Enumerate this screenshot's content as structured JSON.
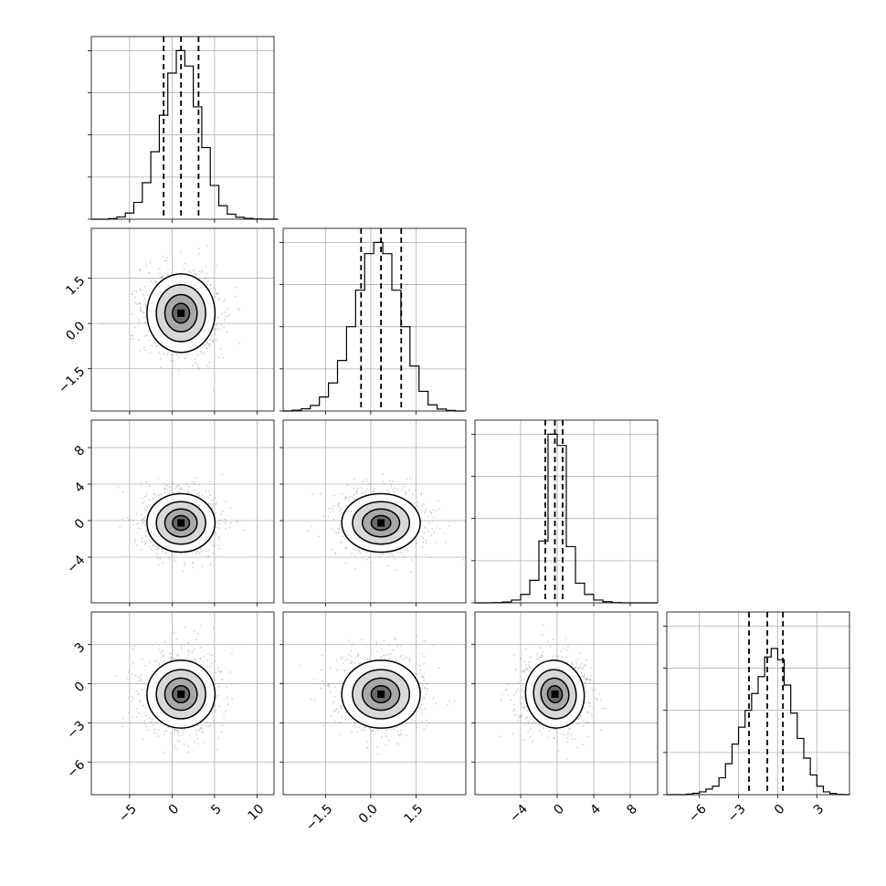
{
  "chart_data": {
    "type": "corner",
    "dimensions": [
      {
        "xlim": [
          -9.5,
          12.0
        ],
        "ticks": [
          -5,
          0,
          5,
          10
        ],
        "tick_labels": [
          "−5",
          "0",
          "5",
          "10"
        ],
        "quantiles": [
          -0.99,
          1.05,
          3.12
        ],
        "hist_x": [
          -9.5,
          -8.5,
          -7.5,
          -6.5,
          -5.5,
          -4.5,
          -3.5,
          -2.5,
          -1.5,
          -0.5,
          0.5,
          1.5,
          2.5,
          3.5,
          4.5,
          5.5,
          6.5,
          7.5,
          8.5,
          9.5,
          10.5,
          11.5
        ],
        "hist_counts": [
          0,
          0,
          2,
          8,
          22,
          60,
          130,
          240,
          370,
          520,
          600,
          545,
          400,
          255,
          120,
          48,
          18,
          7,
          3,
          1,
          0,
          0
        ],
        "hist_ymax": 650
      },
      {
        "xlim": [
          -2.9,
          3.15
        ],
        "ticks": [
          -1.5,
          0.0,
          1.5
        ],
        "tick_labels": [
          "−1.5",
          "0.0",
          "1.5"
        ],
        "quantiles": [
          -0.32,
          0.34,
          1.01
        ],
        "hist_x": [
          -2.9,
          -2.6,
          -2.3,
          -2.0,
          -1.7,
          -1.4,
          -1.1,
          -0.8,
          -0.5,
          -0.2,
          0.1,
          0.4,
          0.7,
          1.0,
          1.3,
          1.6,
          1.9,
          2.2,
          2.5,
          2.8
        ],
        "hist_counts": [
          0,
          3,
          8,
          20,
          50,
          100,
          180,
          300,
          430,
          560,
          600,
          560,
          430,
          300,
          160,
          70,
          22,
          7,
          2,
          0
        ],
        "hist_ymax": 650
      },
      {
        "xlim": [
          -9.0,
          11.0
        ],
        "ticks": [
          -4,
          0,
          4,
          8
        ],
        "tick_labels": [
          "−4",
          "0",
          "4",
          "8"
        ],
        "quantiles": [
          -1.3,
          -0.25,
          0.6
        ],
        "hist_x": [
          -9.0,
          -8.0,
          -7.0,
          -6.0,
          -5.0,
          -4.0,
          -3.0,
          -2.0,
          -1.0,
          0.0,
          1.0,
          2.0,
          3.0,
          4.0,
          5.0,
          6.0,
          7.0,
          8.0,
          9.0,
          10.0
        ],
        "hist_counts": [
          0,
          0,
          1,
          3,
          10,
          30,
          80,
          220,
          600,
          560,
          200,
          70,
          30,
          10,
          4,
          1,
          0,
          0,
          0,
          0
        ],
        "hist_ymax": 650
      },
      {
        "xlim": [
          -8.5,
          5.5
        ],
        "ticks": [
          -6,
          -3,
          0,
          3
        ],
        "tick_labels": [
          "−6",
          "−3",
          "0",
          "3"
        ],
        "quantiles": [
          -2.2,
          -0.8,
          0.4
        ],
        "hist_x": [
          -8.5,
          -8.0,
          -7.5,
          -7.0,
          -6.5,
          -6.0,
          -5.5,
          -5.0,
          -4.5,
          -4.0,
          -3.5,
          -3.0,
          -2.5,
          -2.0,
          -1.5,
          -1.0,
          -0.5,
          0.0,
          0.5,
          1.0,
          1.5,
          2.0,
          2.5,
          3.0,
          3.5,
          4.0,
          4.5,
          5.0
        ],
        "hist_counts": [
          0,
          0,
          0,
          2,
          5,
          10,
          20,
          30,
          60,
          110,
          180,
          240,
          300,
          360,
          420,
          490,
          520,
          480,
          390,
          290,
          200,
          130,
          70,
          30,
          10,
          4,
          1,
          0
        ],
        "hist_ymax": 650
      }
    ],
    "pairs": [
      {
        "row": 1,
        "col": 0,
        "center": [
          1.05,
          0.34
        ],
        "sd": [
          2.0,
          0.65
        ],
        "corr": 0.0
      },
      {
        "row": 2,
        "col": 0,
        "center": [
          1.05,
          -0.25
        ],
        "sd": [
          2.0,
          1.6
        ],
        "corr": 0.0
      },
      {
        "row": 2,
        "col": 1,
        "center": [
          0.34,
          -0.25
        ],
        "sd": [
          0.65,
          1.6
        ],
        "corr": 0.0
      },
      {
        "row": 3,
        "col": 0,
        "center": [
          1.05,
          -0.8
        ],
        "sd": [
          2.0,
          1.3
        ],
        "corr": 0.0
      },
      {
        "row": 3,
        "col": 1,
        "center": [
          0.34,
          -0.8
        ],
        "sd": [
          0.65,
          1.3
        ],
        "corr": 0.0
      },
      {
        "row": 3,
        "col": 2,
        "center": [
          -0.25,
          -0.8
        ],
        "sd": [
          1.6,
          1.3
        ],
        "corr": -0.2
      }
    ],
    "grid": true,
    "colors": {
      "contour": "#000000",
      "scatter": "#9a9a9a",
      "grid": "#b0b0b0",
      "quantile": "#000000"
    }
  }
}
